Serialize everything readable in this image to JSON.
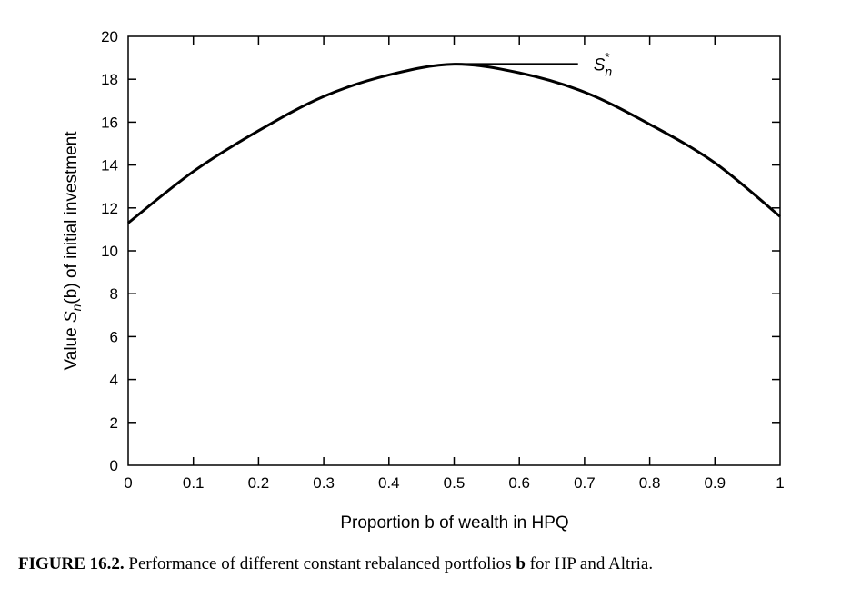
{
  "chart_data": {
    "type": "line",
    "xlabel": "Proportion b of wealth in HPQ",
    "ylabel": {
      "prefix": "Value ",
      "symbol": "S",
      "subscript": "n",
      "arg": "(b)",
      "suffix": " of initial investment"
    },
    "xlim": [
      0,
      1
    ],
    "ylim": [
      0,
      20
    ],
    "x_ticks": [
      "0",
      "0.1",
      "0.2",
      "0.3",
      "0.4",
      "0.5",
      "0.6",
      "0.7",
      "0.8",
      "0.9",
      "1"
    ],
    "y_ticks": [
      "0",
      "2",
      "4",
      "6",
      "8",
      "10",
      "12",
      "14",
      "16",
      "18",
      "20"
    ],
    "grid": false,
    "series": [
      {
        "x": [
          0,
          0.1,
          0.2,
          0.3,
          0.4,
          0.5,
          0.6,
          0.7,
          0.8,
          0.9,
          1.0
        ],
        "y": [
          11.3,
          13.7,
          15.6,
          17.2,
          18.2,
          18.7,
          18.3,
          17.4,
          15.9,
          14.1,
          11.6
        ],
        "color": "#000000"
      }
    ],
    "annotations": [
      {
        "label_symbol": "S",
        "label_sub": "n",
        "label_sup": "*",
        "y": 18.7,
        "x_start": 0.5,
        "x_end": 0.69
      }
    ]
  },
  "caption": {
    "label": "FIGURE 16.2.",
    "text_before": " Performance of different constant rebalanced portfolios ",
    "bold_word": "b",
    "text_after": " for HP and Altria."
  }
}
